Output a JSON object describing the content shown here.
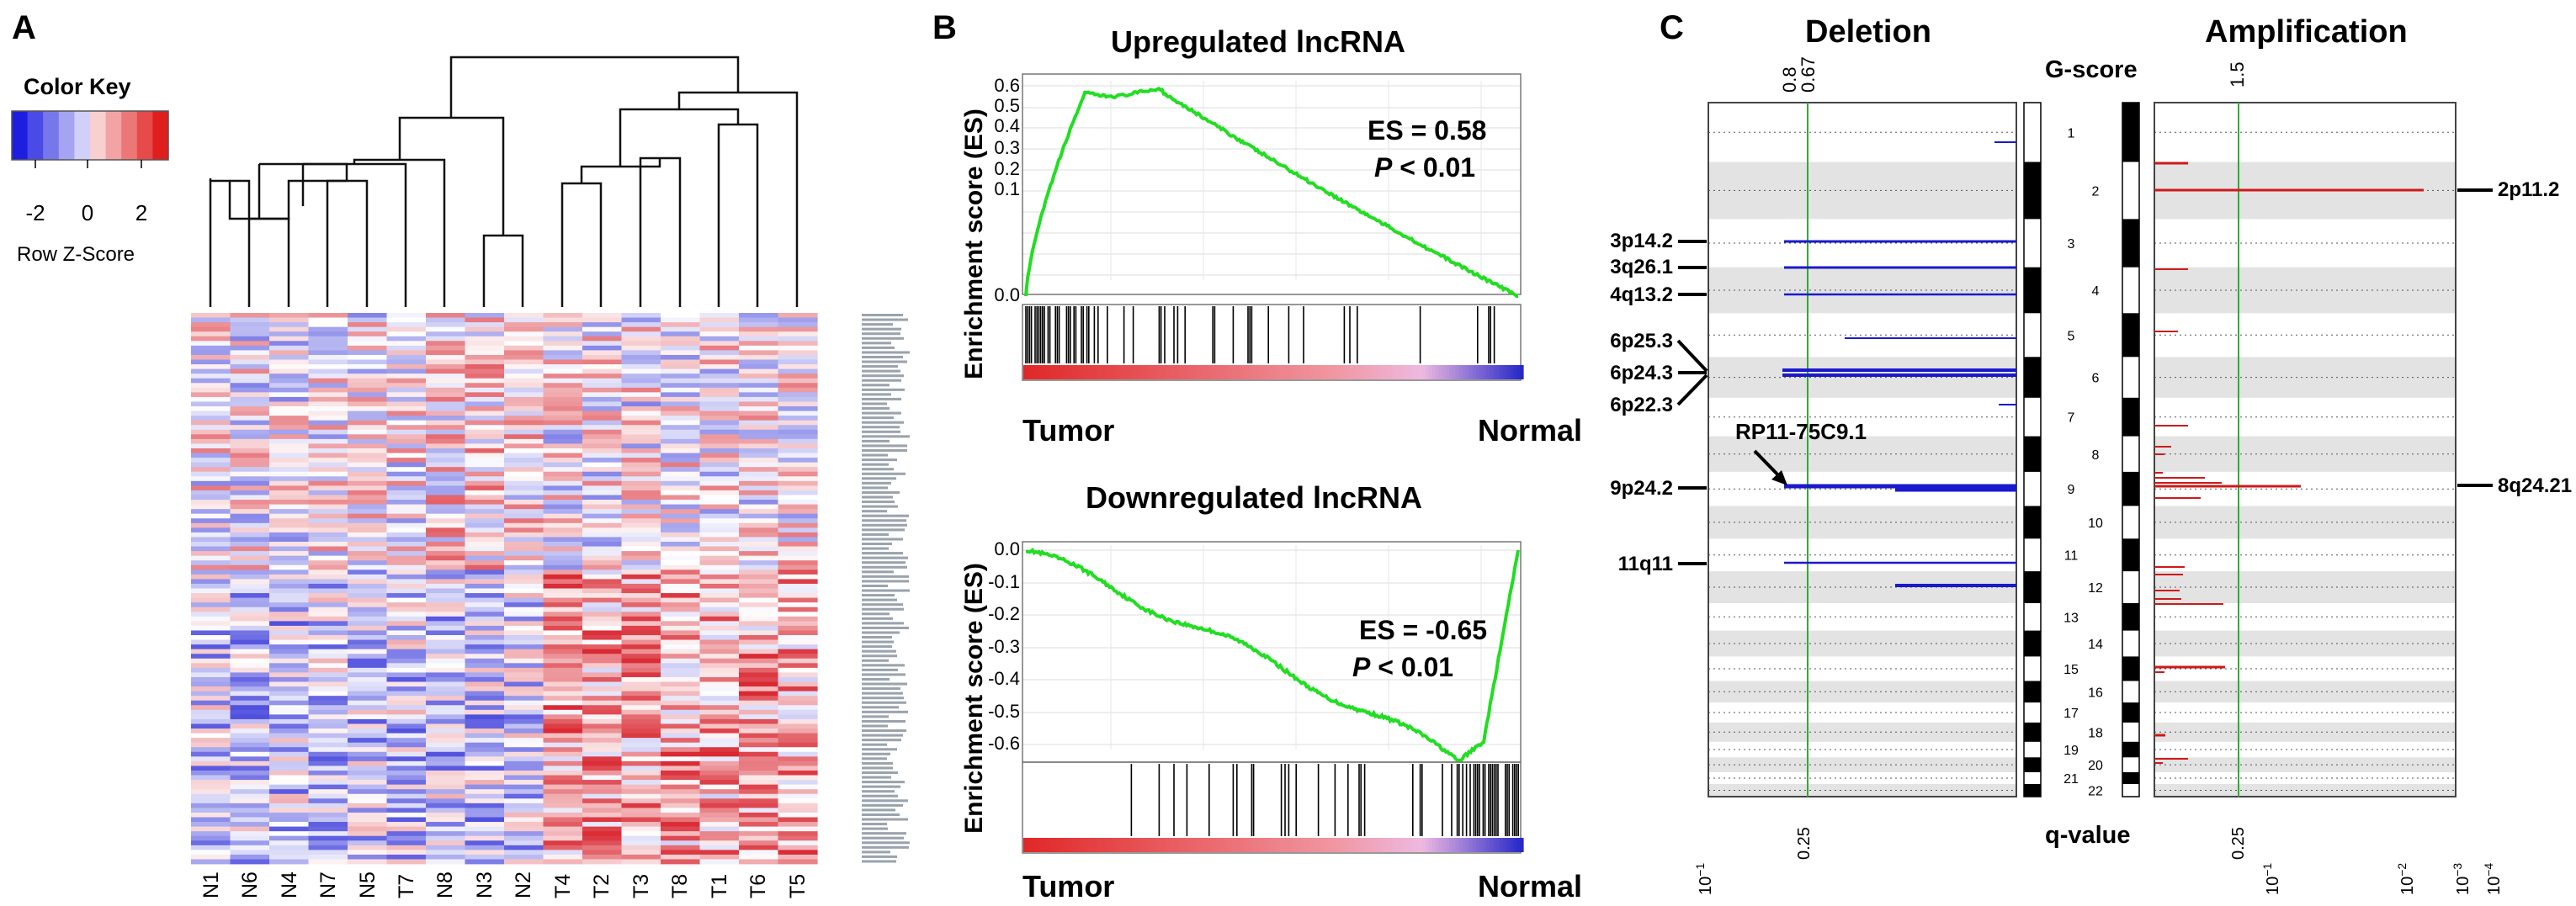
{
  "panel_a": {
    "letter": "A",
    "color_key": {
      "title": "Color Key",
      "ticks": [
        "-2",
        "0",
        "2"
      ],
      "label": "Row Z-Score",
      "colors": [
        "#1e1ee0",
        "#4a4ae6",
        "#7777ec",
        "#a4a4f2",
        "#d0d0f8",
        "#f8d0d0",
        "#f2a4a4",
        "#ec7777",
        "#e64a4a",
        "#e01e1e"
      ]
    },
    "samples": [
      "N1",
      "N6",
      "N4",
      "N7",
      "N5",
      "T7",
      "N8",
      "N3",
      "N2",
      "T4",
      "T2",
      "T3",
      "T8",
      "T1",
      "T6",
      "T5"
    ]
  },
  "panel_b": {
    "letter": "B",
    "up": {
      "title": "Upregulated lncRNA",
      "ylabel": "Enrichment score (ES)",
      "yticks": [
        "0.6",
        "0.5",
        "0.4",
        "0.3",
        "0.2",
        "0.1",
        "0.0"
      ],
      "es": "ES = 0.58",
      "p_sym": "P",
      "p_rest": " < 0.01",
      "left": "Tumor",
      "right": "Normal",
      "peak": 0.58
    },
    "down": {
      "title": "Downregulated lncRNA",
      "ylabel": "Enrichment score (ES)",
      "yticks": [
        "0.0",
        "-0.1",
        "-0.2",
        "-0.3",
        "-0.4",
        "-0.5",
        "-0.6"
      ],
      "es": "ES = -0.65",
      "p_sym": "P",
      "p_rest": " < 0.01",
      "left": "Tumor",
      "right": "Normal",
      "trough": -0.65
    }
  },
  "panel_c": {
    "letter": "C",
    "deletion_title": "Deletion",
    "amplification_title": "Amplification",
    "gscore_label": "G-score",
    "qvalue_label": "q-value",
    "del_gticks": [
      "0.8",
      "0.67"
    ],
    "amp_gticks": [
      "1.5"
    ],
    "del_q": [
      {
        "base": "10",
        "exp": "−1"
      },
      {
        "base": "0.25",
        "exp": ""
      }
    ],
    "amp_q": [
      {
        "base": "0.25",
        "exp": ""
      },
      {
        "base": "10",
        "exp": "−1"
      },
      {
        "base": "10",
        "exp": "−2"
      },
      {
        "base": "10",
        "exp": "−3"
      },
      {
        "base": "10",
        "exp": "−4"
      }
    ],
    "chromosomes_mid": [
      "1",
      "3",
      "5",
      "7",
      "9",
      "11",
      "13",
      "15",
      "17",
      "19",
      "21"
    ],
    "chromosomes_amp": [
      "2",
      "4",
      "6",
      "8",
      "10",
      "12",
      "14",
      "16",
      "18",
      "20",
      "22"
    ],
    "del_labels": [
      "3p14.2",
      "3q26.1",
      "4q13.2",
      "6p25.3",
      "6p24.3",
      "6p22.3",
      "9p24.2",
      "11q11"
    ],
    "amp_labels": [
      "2p11.2",
      "8q24.21"
    ],
    "annotation": "RP11-75C9.1"
  },
  "colors": {
    "gsea_line": "#22dd22",
    "deletion": "#1a1acc",
    "amplification": "#cc1a1a",
    "threshold": "#33aa33"
  }
}
